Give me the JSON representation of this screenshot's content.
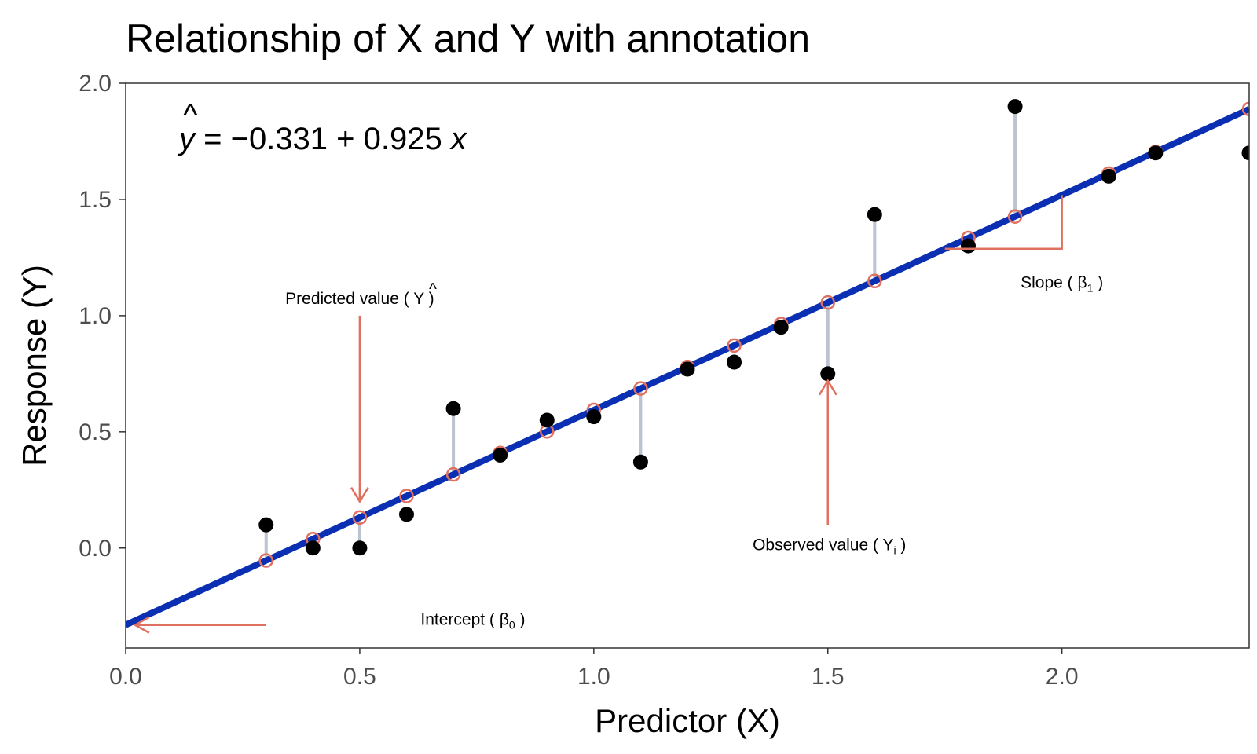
{
  "chart_data": {
    "type": "scatter",
    "title": "Relationship of X and Y with annotation",
    "xlabel": "Predictor (X)",
    "ylabel": "Response (Y)",
    "xlim": [
      0.0,
      2.4
    ],
    "ylim": [
      -0.43,
      2.0
    ],
    "x_ticks": [
      0.0,
      0.5,
      1.0,
      1.5,
      2.0
    ],
    "x_tick_labels": [
      "0.0",
      "0.5",
      "1.0",
      "1.5",
      "2.0"
    ],
    "y_ticks": [
      0.0,
      0.5,
      1.0,
      1.5,
      2.0
    ],
    "y_tick_labels": [
      "0.0",
      "0.5",
      "1.0",
      "1.5",
      "2.0"
    ],
    "grid": false,
    "regression": {
      "intercept": -0.331,
      "slope": 0.925,
      "color": "#0a2fb2",
      "equation": {
        "lhs": "y",
        "hat": "^",
        "equals": "=",
        "minus": "−",
        "intercept": "0.331",
        "plus": "+",
        "slope": "0.925",
        "var": "x"
      }
    },
    "points": [
      {
        "x": 0.3,
        "y": 0.1
      },
      {
        "x": 0.4,
        "y": 0.0
      },
      {
        "x": 0.5,
        "y": 0.0
      },
      {
        "x": 0.6,
        "y": 0.145
      },
      {
        "x": 0.7,
        "y": 0.6
      },
      {
        "x": 0.8,
        "y": 0.4
      },
      {
        "x": 0.9,
        "y": 0.55
      },
      {
        "x": 1.0,
        "y": 0.565
      },
      {
        "x": 1.1,
        "y": 0.37
      },
      {
        "x": 1.2,
        "y": 0.77
      },
      {
        "x": 1.3,
        "y": 0.8
      },
      {
        "x": 1.4,
        "y": 0.95
      },
      {
        "x": 1.5,
        "y": 0.75
      },
      {
        "x": 1.6,
        "y": 1.435
      },
      {
        "x": 1.8,
        "y": 1.3
      },
      {
        "x": 1.9,
        "y": 1.9
      },
      {
        "x": 2.1,
        "y": 1.6
      },
      {
        "x": 2.2,
        "y": 1.7
      },
      {
        "x": 2.4,
        "y": 1.7
      }
    ],
    "residual_x": [
      0.3,
      0.5,
      0.7,
      1.1,
      1.5,
      1.6,
      1.9
    ],
    "colors": {
      "point": "#000000",
      "fitted": "#e07060",
      "residual": "#bcc4d1",
      "annotation": "#e07060"
    },
    "annotations": {
      "predicted": {
        "text": "Predicted value ( ",
        "symbol": "Y",
        "hat": "^",
        "close": " )",
        "x": 0.5,
        "label_y": 1.05,
        "arrow_from_y": 1.0,
        "arrow_to_y": 0.2
      },
      "observed": {
        "text": "Observed value ( ",
        "symbol": "Y",
        "sub": "i",
        "close": " )",
        "x": 1.5,
        "label_y": -0.01,
        "arrow_from_y": 0.1,
        "arrow_to_y": 0.72
      },
      "slope": {
        "text": "Slope ( ",
        "symbol": "β",
        "sub": "1",
        "close": " )",
        "x_from": 1.75,
        "x_to": 2.0,
        "label_x": 2.0,
        "label_y": 1.12
      },
      "intercept": {
        "text": "Intercept ( ",
        "symbol": "β",
        "sub": "0",
        "close": " )",
        "label_x": 0.63,
        "label_y": -0.33,
        "arrow_from_x": 0.3,
        "arrow_to_x": 0.02,
        "arrow_y": -0.331
      }
    }
  }
}
